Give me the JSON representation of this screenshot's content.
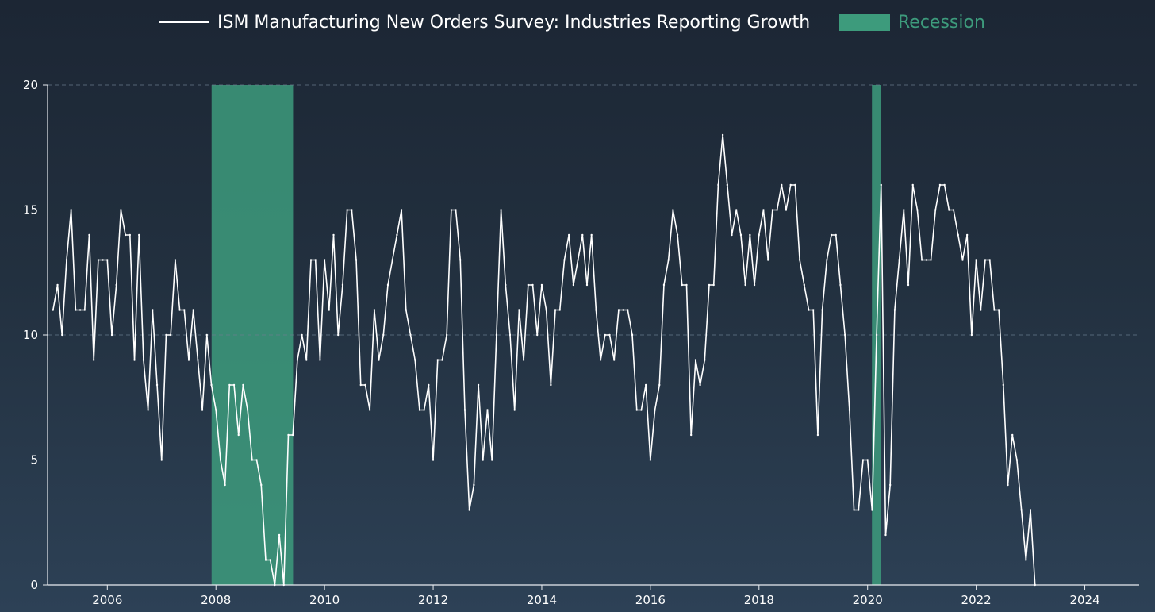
{
  "chart_data": {
    "type": "line",
    "title": "",
    "xlabel": "",
    "ylabel": "",
    "ylim": [
      0,
      20
    ],
    "xlim": [
      2004.9,
      2025.0
    ],
    "grid": true,
    "legend_position": "top-center",
    "colors": {
      "line": "#ffffff",
      "recession": "#3d9b7c",
      "legend_recession_text": "#3d9b7c",
      "grid": "#6b7d8f"
    },
    "y_ticks": [
      0,
      5,
      10,
      15,
      20
    ],
    "x_ticks": [
      2006,
      2008,
      2010,
      2012,
      2014,
      2016,
      2018,
      2020,
      2022,
      2024
    ],
    "legend": [
      {
        "name": "ISM Manufacturing New Orders Survey: Industries Reporting Growth",
        "kind": "line"
      },
      {
        "name": "Recession",
        "kind": "area"
      }
    ],
    "recessions": [
      {
        "start": 2007.92,
        "end": 2009.42
      },
      {
        "start": 2020.08,
        "end": 2020.25
      }
    ],
    "series": [
      {
        "name": "ISM Manufacturing New Orders Survey: Industries Reporting Growth",
        "start_year": 2005.0,
        "step": 0.08333,
        "values": [
          11,
          12,
          10,
          13,
          15,
          11,
          11,
          11,
          14,
          9,
          13,
          13,
          13,
          10,
          12,
          15,
          14,
          14,
          9,
          14,
          9,
          7,
          11,
          8,
          5,
          10,
          10,
          13,
          11,
          11,
          9,
          11,
          9,
          7,
          10,
          8,
          7,
          5,
          4,
          8,
          8,
          6,
          8,
          7,
          5,
          5,
          4,
          1,
          1,
          0,
          2,
          0,
          6,
          6,
          9,
          10,
          9,
          13,
          13,
          9,
          13,
          11,
          14,
          10,
          12,
          15,
          15,
          13,
          8,
          8,
          7,
          11,
          9,
          10,
          12,
          13,
          14,
          15,
          11,
          10,
          9,
          7,
          7,
          8,
          5,
          9,
          9,
          10,
          15,
          15,
          13,
          7,
          3,
          4,
          8,
          5,
          7,
          5,
          10,
          15,
          12,
          10,
          7,
          11,
          9,
          12,
          12,
          10,
          12,
          11,
          8,
          11,
          11,
          13,
          14,
          12,
          13,
          14,
          12,
          14,
          11,
          9,
          10,
          10,
          9,
          11,
          11,
          11,
          10,
          7,
          7,
          8,
          5,
          7,
          8,
          12,
          13,
          15,
          14,
          12,
          12,
          6,
          9,
          8,
          9,
          12,
          12,
          16,
          18,
          16,
          14,
          15,
          14,
          12,
          14,
          12,
          14,
          15,
          13,
          15,
          15,
          16,
          15,
          16,
          16,
          13,
          12,
          11,
          11,
          6,
          11,
          13,
          14,
          14,
          12,
          10,
          7,
          3,
          3,
          5,
          5,
          3,
          10,
          16,
          2,
          4,
          11,
          13,
          15,
          12,
          16,
          15,
          13,
          13,
          13,
          15,
          16,
          16,
          15,
          15,
          14,
          13,
          14,
          10,
          13,
          11,
          13,
          13,
          11,
          11,
          8,
          4,
          6,
          5,
          3,
          1,
          3,
          0
        ]
      }
    ]
  }
}
